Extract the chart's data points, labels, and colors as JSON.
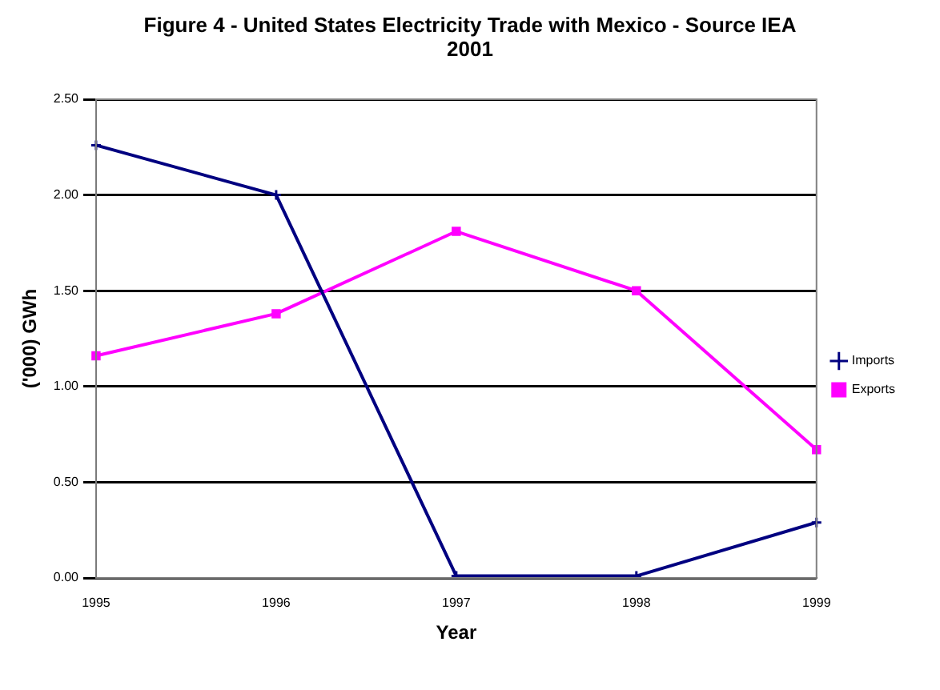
{
  "chart_data": {
    "type": "line",
    "title": "Figure 4 - United States Electricity Trade with Mexico - Source IEA 2001",
    "xlabel": "Year",
    "ylabel": "('000) GWh",
    "categories": [
      "1995",
      "1996",
      "1997",
      "1998",
      "1999"
    ],
    "series": [
      {
        "name": "Imports",
        "color": "#000080",
        "marker": "cross",
        "values": [
          2.26,
          2.0,
          0.01,
          0.01,
          0.29
        ]
      },
      {
        "name": "Exports",
        "color": "#ff00ff",
        "marker": "square",
        "values": [
          1.16,
          1.38,
          1.81,
          1.5,
          0.67
        ]
      }
    ],
    "ylim": [
      0,
      2.5
    ],
    "yticks": [
      {
        "value": 0,
        "label": "0.00"
      },
      {
        "value": 0.5,
        "label": "0.50"
      },
      {
        "value": 1,
        "label": "1.00"
      },
      {
        "value": 1.5,
        "label": "1.50"
      },
      {
        "value": 2,
        "label": "2.00"
      },
      {
        "value": 2.5,
        "label": "2.50"
      }
    ],
    "grid": "y",
    "legend": "right"
  }
}
